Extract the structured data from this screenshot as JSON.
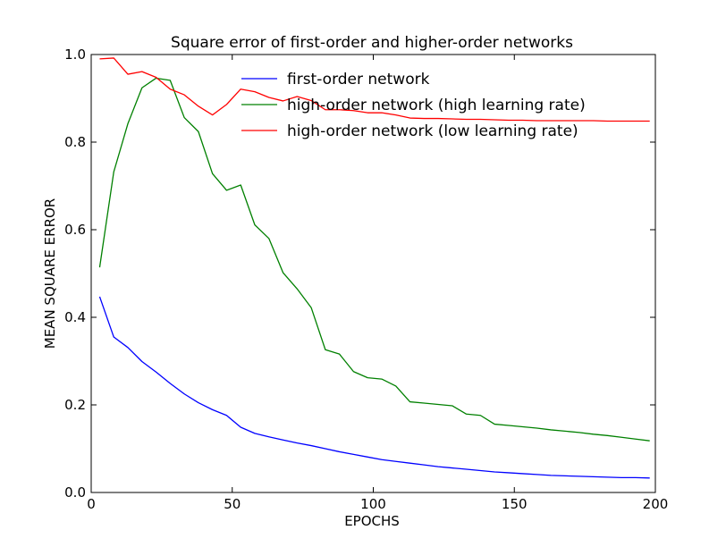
{
  "chart_data": {
    "type": "line",
    "title": "Square error of first-order and higher-order networks",
    "xlabel": "EPOCHS",
    "ylabel": "MEAN SQUARE ERROR",
    "xlim": [
      0,
      200
    ],
    "ylim": [
      0.0,
      1.0
    ],
    "xticks": [
      0,
      50,
      100,
      150,
      200
    ],
    "yticks": [
      0.0,
      0.2,
      0.4,
      0.6,
      0.8,
      1.0
    ],
    "xtick_labels": [
      "0",
      "50",
      "100",
      "150",
      "200"
    ],
    "ytick_labels": [
      "0.0",
      "0.2",
      "0.4",
      "0.6",
      "0.8",
      "1.0"
    ],
    "grid": false,
    "legend_position": "top-right",
    "x": [
      3,
      8,
      13,
      18,
      23,
      28,
      33,
      38,
      43,
      48,
      53,
      58,
      63,
      68,
      73,
      78,
      83,
      88,
      93,
      98,
      103,
      108,
      113,
      118,
      123,
      128,
      133,
      138,
      143,
      148,
      153,
      158,
      163,
      168,
      173,
      178,
      183,
      188,
      193,
      198
    ],
    "series": [
      {
        "name": "first-order network",
        "color": "#0000ff",
        "values": [
          0.447,
          0.355,
          0.331,
          0.299,
          0.275,
          0.249,
          0.225,
          0.205,
          0.189,
          0.176,
          0.149,
          0.135,
          0.127,
          0.12,
          0.113,
          0.107,
          0.1,
          0.093,
          0.087,
          0.081,
          0.075,
          0.071,
          0.067,
          0.063,
          0.059,
          0.056,
          0.053,
          0.05,
          0.047,
          0.045,
          0.043,
          0.041,
          0.039,
          0.038,
          0.037,
          0.036,
          0.035,
          0.034,
          0.034,
          0.033
        ]
      },
      {
        "name": "high-order network (high learning rate)",
        "color": "#008000",
        "values": [
          0.514,
          0.732,
          0.842,
          0.924,
          0.946,
          0.941,
          0.856,
          0.824,
          0.728,
          0.69,
          0.702,
          0.611,
          0.58,
          0.502,
          0.465,
          0.422,
          0.326,
          0.316,
          0.276,
          0.262,
          0.259,
          0.243,
          0.207,
          0.204,
          0.201,
          0.198,
          0.179,
          0.176,
          0.156,
          0.153,
          0.15,
          0.147,
          0.143,
          0.14,
          0.137,
          0.133,
          0.13,
          0.126,
          0.122,
          0.118
        ]
      },
      {
        "name": "high-order network (low learning rate)",
        "color": "#ff0000",
        "values": [
          0.99,
          0.992,
          0.955,
          0.961,
          0.948,
          0.921,
          0.908,
          0.882,
          0.862,
          0.886,
          0.921,
          0.915,
          0.902,
          0.894,
          0.904,
          0.895,
          0.874,
          0.874,
          0.872,
          0.867,
          0.867,
          0.862,
          0.855,
          0.854,
          0.854,
          0.853,
          0.852,
          0.852,
          0.851,
          0.85,
          0.85,
          0.849,
          0.849,
          0.849,
          0.849,
          0.849,
          0.848,
          0.848,
          0.848,
          0.848
        ]
      }
    ]
  }
}
